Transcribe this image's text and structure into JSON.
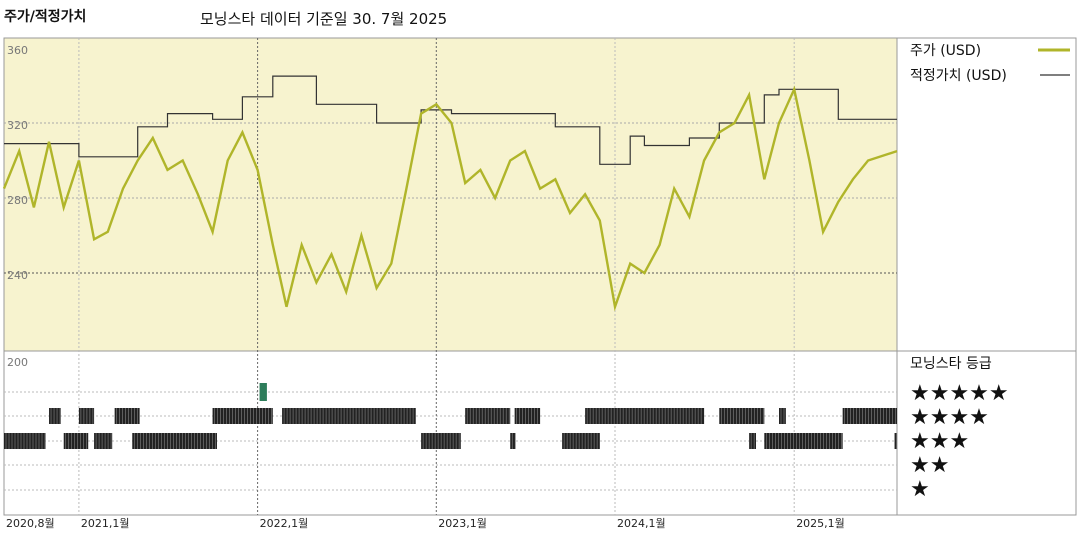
{
  "header": {
    "title": "주가/적정가치",
    "subtitle": "모닝스타 데이터 기준일 30. 7월 2025"
  },
  "legend": {
    "price_label": "주가 (USD)",
    "fair_label": "적정가치 (USD)",
    "rating_title": "모닝스타 등급",
    "stars": [
      "★★★★★",
      "★★★★",
      "★★★",
      "★★",
      "★"
    ]
  },
  "colors": {
    "price": "#b0b52a",
    "fair": "#333333",
    "panel_bg": "#f7f3cf",
    "rating_bar": "#222222",
    "rating_highlight": "#2e7d5b"
  },
  "chart_data": {
    "type": "line",
    "x_start": "2020-08-01",
    "x_end": "2025-07-30",
    "y_ticks": [
      360,
      320,
      280,
      240,
      200
    ],
    "ylim": [
      200,
      360
    ],
    "x_ticks": [
      {
        "date": "2020-08-01",
        "label": "2020,8월"
      },
      {
        "date": "2021-01-01",
        "label": "2021,1월"
      },
      {
        "date": "2022-01-01",
        "label": "2022,1월"
      },
      {
        "date": "2023-01-01",
        "label": "2023,1월"
      },
      {
        "date": "2024-01-01",
        "label": "2024,1월"
      },
      {
        "date": "2025-01-01",
        "label": "2025,1월"
      }
    ],
    "series": [
      {
        "name": "주가 (USD)",
        "points": [
          [
            "2020-08-01",
            285
          ],
          [
            "2020-09-01",
            305
          ],
          [
            "2020-10-01",
            275
          ],
          [
            "2020-11-01",
            310
          ],
          [
            "2020-12-01",
            275
          ],
          [
            "2021-01-01",
            300
          ],
          [
            "2021-02-01",
            258
          ],
          [
            "2021-03-01",
            262
          ],
          [
            "2021-04-01",
            285
          ],
          [
            "2021-05-01",
            300
          ],
          [
            "2021-06-01",
            312
          ],
          [
            "2021-07-01",
            295
          ],
          [
            "2021-08-01",
            300
          ],
          [
            "2021-09-01",
            282
          ],
          [
            "2021-10-01",
            262
          ],
          [
            "2021-11-01",
            300
          ],
          [
            "2021-12-01",
            315
          ],
          [
            "2022-01-01",
            295
          ],
          [
            "2022-02-01",
            255
          ],
          [
            "2022-03-01",
            222
          ],
          [
            "2022-04-01",
            255
          ],
          [
            "2022-05-01",
            235
          ],
          [
            "2022-06-01",
            250
          ],
          [
            "2022-07-01",
            230
          ],
          [
            "2022-08-01",
            260
          ],
          [
            "2022-09-01",
            232
          ],
          [
            "2022-10-01",
            245
          ],
          [
            "2022-11-01",
            285
          ],
          [
            "2022-12-01",
            325
          ],
          [
            "2023-01-01",
            330
          ],
          [
            "2023-02-01",
            320
          ],
          [
            "2023-03-01",
            288
          ],
          [
            "2023-04-01",
            295
          ],
          [
            "2023-05-01",
            280
          ],
          [
            "2023-06-01",
            300
          ],
          [
            "2023-07-01",
            305
          ],
          [
            "2023-08-01",
            285
          ],
          [
            "2023-09-01",
            290
          ],
          [
            "2023-10-01",
            272
          ],
          [
            "2023-11-01",
            282
          ],
          [
            "2023-12-01",
            268
          ],
          [
            "2024-01-01",
            222
          ],
          [
            "2024-02-01",
            245
          ],
          [
            "2024-03-01",
            240
          ],
          [
            "2024-04-01",
            255
          ],
          [
            "2024-05-01",
            285
          ],
          [
            "2024-06-01",
            270
          ],
          [
            "2024-07-01",
            300
          ],
          [
            "2024-08-01",
            315
          ],
          [
            "2024-09-01",
            320
          ],
          [
            "2024-10-01",
            335
          ],
          [
            "2024-11-01",
            290
          ],
          [
            "2024-12-01",
            320
          ],
          [
            "2025-01-01",
            338
          ],
          [
            "2025-02-01",
            300
          ],
          [
            "2025-03-01",
            262
          ],
          [
            "2025-04-01",
            278
          ],
          [
            "2025-05-01",
            290
          ],
          [
            "2025-06-01",
            300
          ],
          [
            "2025-07-30",
            305
          ]
        ]
      },
      {
        "name": "적정가치 (USD)",
        "step": true,
        "points": [
          [
            "2020-08-01",
            309
          ],
          [
            "2021-01-01",
            302
          ],
          [
            "2021-05-01",
            318
          ],
          [
            "2021-07-01",
            325
          ],
          [
            "2021-10-01",
            322
          ],
          [
            "2021-12-01",
            334
          ],
          [
            "2022-02-01",
            345
          ],
          [
            "2022-05-01",
            330
          ],
          [
            "2022-09-01",
            320
          ],
          [
            "2022-12-01",
            327
          ],
          [
            "2023-02-01",
            325
          ],
          [
            "2023-09-01",
            318
          ],
          [
            "2023-12-01",
            298
          ],
          [
            "2024-02-01",
            313
          ],
          [
            "2024-03-01",
            308
          ],
          [
            "2024-06-01",
            312
          ],
          [
            "2024-08-01",
            320
          ],
          [
            "2024-11-01",
            335
          ],
          [
            "2024-12-01",
            338
          ],
          [
            "2025-04-01",
            322
          ],
          [
            "2025-07-30",
            322
          ]
        ]
      }
    ],
    "ratings": [
      {
        "stars": 5,
        "periods": [
          [
            "2022-01-05",
            "2022-01-20"
          ]
        ]
      },
      {
        "stars": 4,
        "periods": [
          [
            "2020-11-01",
            "2020-11-25"
          ],
          [
            "2021-01-01",
            "2021-02-01"
          ],
          [
            "2021-03-15",
            "2021-05-05"
          ],
          [
            "2021-10-01",
            "2022-02-01"
          ],
          [
            "2022-02-20",
            "2022-11-20"
          ],
          [
            "2023-03-01",
            "2023-06-01"
          ],
          [
            "2023-06-10",
            "2023-08-01"
          ],
          [
            "2023-11-01",
            "2024-07-01"
          ],
          [
            "2024-08-01",
            "2024-11-01"
          ],
          [
            "2024-12-01",
            "2024-12-15"
          ],
          [
            "2025-04-10",
            "2025-07-30"
          ]
        ]
      },
      {
        "stars": 3,
        "periods": [
          [
            "2020-08-01",
            "2020-10-25"
          ],
          [
            "2020-12-01",
            "2021-01-20"
          ],
          [
            "2021-02-01",
            "2021-03-10"
          ],
          [
            "2021-04-20",
            "2021-10-10"
          ],
          [
            "2022-12-01",
            "2023-02-20"
          ],
          [
            "2023-06-01",
            "2023-06-12"
          ],
          [
            "2023-09-15",
            "2023-12-01"
          ],
          [
            "2024-10-01",
            "2024-10-15"
          ],
          [
            "2024-11-01",
            "2025-04-10"
          ],
          [
            "2025-07-25",
            "2025-07-30"
          ]
        ]
      }
    ]
  }
}
